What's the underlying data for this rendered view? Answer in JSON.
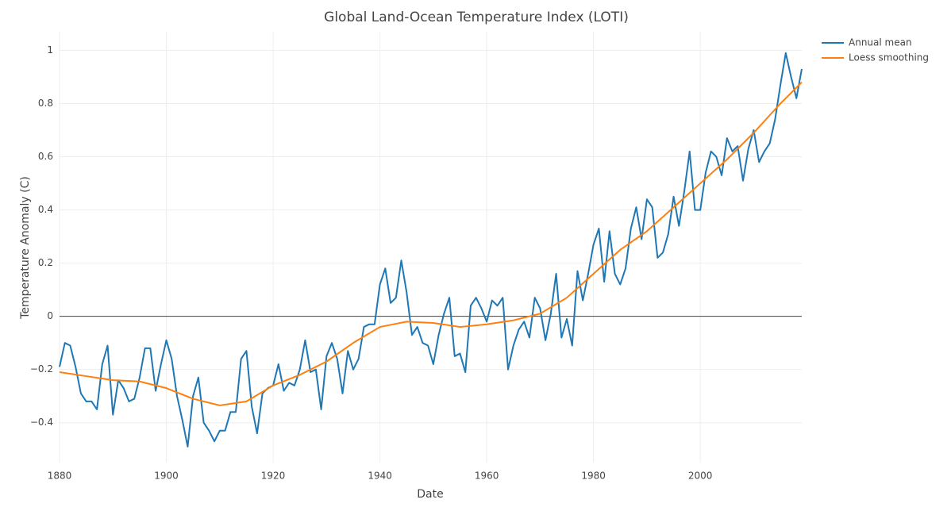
{
  "chart_data": {
    "type": "line",
    "title": "Global Land-Ocean Temperature Index (LOTI)",
    "x_label": "Date",
    "y_label": "Temperature Anomaly (C)",
    "xlim": [
      1880,
      2019
    ],
    "ylim": [
      -0.55,
      1.07
    ],
    "xticks": [
      1880,
      1900,
      1920,
      1940,
      1960,
      1980,
      2000
    ],
    "yticks": [
      {
        "value": -0.4,
        "label": "−0.4"
      },
      {
        "value": -0.2,
        "label": "−0.2"
      },
      0,
      0.2,
      0.4,
      0.6,
      0.8,
      1
    ],
    "grid": true,
    "zero_line": true,
    "legend": "right",
    "series": [
      {
        "name": "Annual mean",
        "color": "#1f77b4",
        "x": [
          1880,
          1881,
          1882,
          1883,
          1884,
          1885,
          1886,
          1887,
          1888,
          1889,
          1890,
          1891,
          1892,
          1893,
          1894,
          1895,
          1896,
          1897,
          1898,
          1899,
          1900,
          1901,
          1902,
          1903,
          1904,
          1905,
          1906,
          1907,
          1908,
          1909,
          1910,
          1911,
          1912,
          1913,
          1914,
          1915,
          1916,
          1917,
          1918,
          1919,
          1920,
          1921,
          1922,
          1923,
          1924,
          1925,
          1926,
          1927,
          1928,
          1929,
          1930,
          1931,
          1932,
          1933,
          1934,
          1935,
          1936,
          1937,
          1938,
          1939,
          1940,
          1941,
          1942,
          1943,
          1944,
          1945,
          1946,
          1947,
          1948,
          1949,
          1950,
          1951,
          1952,
          1953,
          1954,
          1955,
          1956,
          1957,
          1958,
          1959,
          1960,
          1961,
          1962,
          1963,
          1964,
          1965,
          1966,
          1967,
          1968,
          1969,
          1970,
          1971,
          1972,
          1973,
          1974,
          1975,
          1976,
          1977,
          1978,
          1979,
          1980,
          1981,
          1982,
          1983,
          1984,
          1985,
          1986,
          1987,
          1988,
          1989,
          1990,
          1991,
          1992,
          1993,
          1994,
          1995,
          1996,
          1997,
          1998,
          1999,
          2000,
          2001,
          2002,
          2003,
          2004,
          2005,
          2006,
          2007,
          2008,
          2009,
          2010,
          2011,
          2012,
          2013,
          2014,
          2015,
          2016,
          2017,
          2018,
          2019
        ],
        "values": [
          -0.19,
          -0.1,
          -0.11,
          -0.19,
          -0.29,
          -0.32,
          -0.32,
          -0.35,
          -0.18,
          -0.11,
          -0.37,
          -0.24,
          -0.27,
          -0.32,
          -0.31,
          -0.23,
          -0.12,
          -0.12,
          -0.28,
          -0.18,
          -0.09,
          -0.16,
          -0.3,
          -0.39,
          -0.49,
          -0.3,
          -0.23,
          -0.4,
          -0.43,
          -0.47,
          -0.43,
          -0.43,
          -0.36,
          -0.36,
          -0.16,
          -0.13,
          -0.34,
          -0.44,
          -0.29,
          -0.27,
          -0.26,
          -0.18,
          -0.28,
          -0.25,
          -0.26,
          -0.2,
          -0.09,
          -0.21,
          -0.2,
          -0.35,
          -0.15,
          -0.1,
          -0.16,
          -0.29,
          -0.13,
          -0.2,
          -0.16,
          -0.04,
          -0.03,
          -0.03,
          0.12,
          0.18,
          0.05,
          0.07,
          0.21,
          0.09,
          -0.07,
          -0.04,
          -0.1,
          -0.11,
          -0.18,
          -0.07,
          0.01,
          0.07,
          -0.15,
          -0.14,
          -0.21,
          0.04,
          0.07,
          0.03,
          -0.02,
          0.06,
          0.04,
          0.07,
          -0.2,
          -0.11,
          -0.05,
          -0.02,
          -0.08,
          0.07,
          0.03,
          -0.09,
          0.01,
          0.16,
          -0.08,
          -0.01,
          -0.11,
          0.17,
          0.06,
          0.16,
          0.27,
          0.33,
          0.13,
          0.32,
          0.16,
          0.12,
          0.18,
          0.33,
          0.41,
          0.29,
          0.44,
          0.41,
          0.22,
          0.24,
          0.31,
          0.45,
          0.34,
          0.47,
          0.62,
          0.4,
          0.4,
          0.54,
          0.62,
          0.6,
          0.53,
          0.67,
          0.62,
          0.64,
          0.51,
          0.63,
          0.7,
          0.58,
          0.62,
          0.65,
          0.74,
          0.87,
          0.99,
          0.9,
          0.82,
          0.93
        ]
      },
      {
        "name": "Loess smoothing",
        "color": "#ff7f0e",
        "x": [
          1880,
          1885,
          1890,
          1895,
          1900,
          1905,
          1910,
          1915,
          1920,
          1925,
          1930,
          1935,
          1940,
          1945,
          1950,
          1955,
          1960,
          1965,
          1970,
          1975,
          1980,
          1985,
          1990,
          1995,
          2000,
          2005,
          2010,
          2015,
          2019
        ],
        "values": [
          -0.21,
          -0.225,
          -0.24,
          -0.245,
          -0.27,
          -0.31,
          -0.335,
          -0.32,
          -0.26,
          -0.22,
          -0.17,
          -0.1,
          -0.04,
          -0.02,
          -0.025,
          -0.04,
          -0.03,
          -0.015,
          0.01,
          0.07,
          0.16,
          0.25,
          0.32,
          0.41,
          0.5,
          0.59,
          0.69,
          0.8,
          0.88
        ]
      }
    ]
  }
}
